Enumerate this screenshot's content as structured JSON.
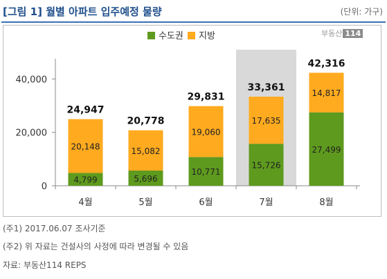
{
  "header": {
    "title": "[그림 1] 월별 아파트 입주예정 물량",
    "unit": "(단위: 가구)"
  },
  "watermark": {
    "text": "부동산",
    "badge": "114"
  },
  "chart_data": {
    "type": "bar",
    "stacked": true,
    "categories": [
      "4월",
      "5월",
      "6월",
      "7월",
      "8월"
    ],
    "series": [
      {
        "name": "수도권",
        "color": "#5e9a1e",
        "values": [
          4799,
          5696,
          10771,
          15726,
          27499
        ]
      },
      {
        "name": "지방",
        "color": "#ffaa1f",
        "values": [
          20148,
          15082,
          19060,
          17635,
          14817
        ]
      }
    ],
    "totals": [
      24947,
      20778,
      29831,
      33361,
      42316
    ],
    "data_labels_series1": [
      "4,799",
      "5,696",
      "10,771",
      "15,726",
      "27,499"
    ],
    "data_labels_series2": [
      "20,148",
      "15,082",
      "19,060",
      "17,635",
      "14,817"
    ],
    "data_labels_totals": [
      "24,947",
      "20,778",
      "29,831",
      "33,361",
      "42,316"
    ],
    "highlight_category": "7월",
    "y_ticks": [
      0,
      20000,
      40000
    ],
    "y_tick_labels": [
      "0",
      "20,000",
      "40,000"
    ],
    "ylim": [
      0,
      45000
    ],
    "legend_position": "top",
    "grid": false
  },
  "notes": [
    "(주1) 2017.06.07 조사기준",
    "(주2) 위 자료는 건설사의 사정에 따라 변경될 수 있음",
    "자료: 부동산114 REPS"
  ]
}
